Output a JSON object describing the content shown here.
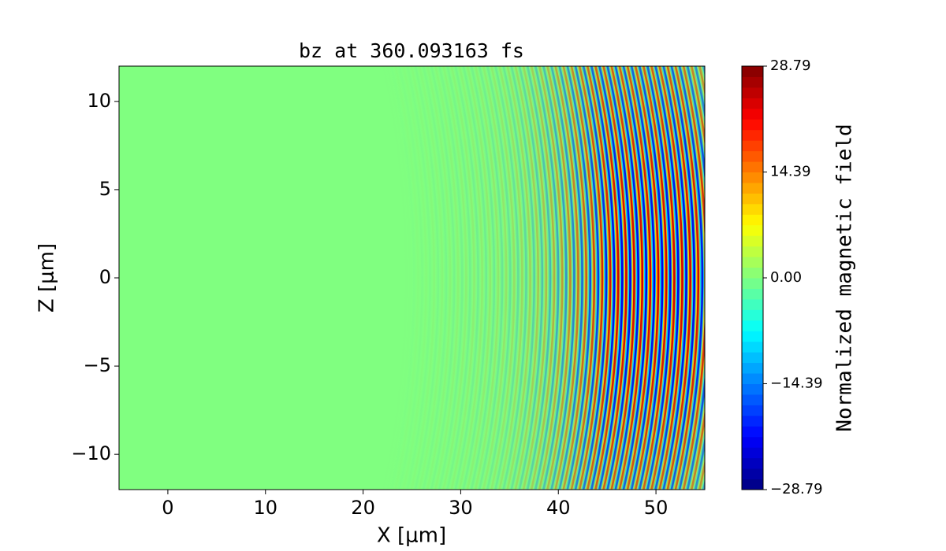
{
  "chart_data": {
    "type": "heatmap",
    "title": "bz at 360.093163 fs",
    "xlabel": "X [μm]",
    "ylabel": "Z [μm]",
    "xlim": [
      -5,
      55
    ],
    "ylim": [
      -12,
      12
    ],
    "xticks": [
      0,
      10,
      20,
      30,
      40,
      50
    ],
    "yticks": [
      {
        "value": -10,
        "label": "−10"
      },
      {
        "value": -5,
        "label": "−5"
      },
      0,
      5,
      10
    ],
    "colorbar": {
      "label": "Normalized magnetic field",
      "colormap": "jet",
      "clim": [
        -28.79,
        28.79
      ],
      "ticks": [
        {
          "value": -28.79,
          "label": "−28.79"
        },
        {
          "value": -14.39,
          "label": "−14.39"
        },
        {
          "value": 0,
          "label": "0.00"
        },
        14.39,
        28.79
      ]
    }
  }
}
